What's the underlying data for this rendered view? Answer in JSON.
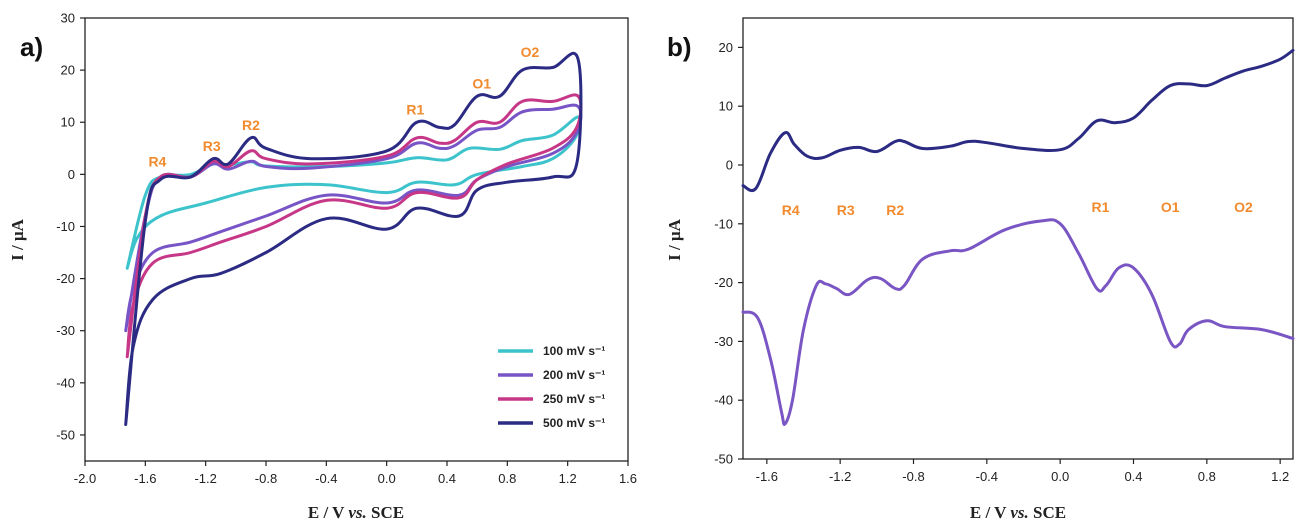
{
  "chart_data": [
    {
      "panel": "a)",
      "type": "line",
      "xlabel": "E / V vs. SCE",
      "ylabel": "I / μA",
      "xlim": [
        -2.0,
        1.6
      ],
      "ylim": [
        -55,
        30
      ],
      "xticks": [
        "-2.0",
        "-1.6",
        "-1.2",
        "-0.8",
        "-0.4",
        "0.0",
        "0.4",
        "0.8",
        "1.2",
        "1.6"
      ],
      "yticks": [
        "30",
        "20",
        "10",
        "0",
        "-10",
        "-20",
        "-30",
        "-40",
        "-50"
      ],
      "legend_position": "bottom-right",
      "peak_labels": [
        {
          "text": "R4",
          "x": -1.52,
          "y": 1.5
        },
        {
          "text": "R3",
          "x": -1.16,
          "y": 4.5
        },
        {
          "text": "R2",
          "x": -0.9,
          "y": 8.5
        },
        {
          "text": "R1",
          "x": 0.19,
          "y": 11.5
        },
        {
          "text": "O1",
          "x": 0.63,
          "y": 16.5
        },
        {
          "text": "O2",
          "x": 0.95,
          "y": 22.5
        }
      ],
      "series": [
        {
          "name": "100 mV s⁻¹",
          "color": "#3cc3cb",
          "forward": [
            [
              -1.72,
              -18
            ],
            [
              -1.6,
              -4
            ],
            [
              -1.5,
              -0.5
            ],
            [
              -1.3,
              0
            ],
            [
              -1.15,
              2
            ],
            [
              -1.05,
              1.8
            ],
            [
              -0.9,
              2.4
            ],
            [
              -0.8,
              1.6
            ],
            [
              -0.4,
              1.5
            ],
            [
              0,
              2.2
            ],
            [
              0.2,
              3.2
            ],
            [
              0.4,
              2.8
            ],
            [
              0.55,
              5
            ],
            [
              0.75,
              4.8
            ],
            [
              0.9,
              6.5
            ],
            [
              1.1,
              7.5
            ],
            [
              1.27,
              11
            ]
          ],
          "reverse": [
            [
              1.27,
              11
            ],
            [
              1.25,
              7
            ],
            [
              1.1,
              3
            ],
            [
              0.9,
              1.5
            ],
            [
              0.6,
              0
            ],
            [
              0.45,
              -2
            ],
            [
              0.2,
              -1.5
            ],
            [
              0,
              -3.5
            ],
            [
              -0.4,
              -2
            ],
            [
              -0.8,
              -2.5
            ],
            [
              -1.2,
              -5.5
            ],
            [
              -1.5,
              -8
            ],
            [
              -1.65,
              -12
            ],
            [
              -1.72,
              -18
            ]
          ]
        },
        {
          "name": "200 mV s⁻¹",
          "color": "#7855c6",
          "forward": [
            [
              -1.73,
              -30
            ],
            [
              -1.6,
              -8
            ],
            [
              -1.5,
              -0.5
            ],
            [
              -1.3,
              -0.5
            ],
            [
              -1.15,
              2
            ],
            [
              -1.05,
              1
            ],
            [
              -0.9,
              2.5
            ],
            [
              -0.8,
              1.5
            ],
            [
              -0.5,
              1.2
            ],
            [
              0,
              3
            ],
            [
              0.2,
              6
            ],
            [
              0.35,
              5
            ],
            [
              0.45,
              5.5
            ],
            [
              0.6,
              8.5
            ],
            [
              0.75,
              9
            ],
            [
              0.9,
              12
            ],
            [
              1.1,
              12.5
            ],
            [
              1.27,
              13
            ]
          ],
          "reverse": [
            [
              1.27,
              13
            ],
            [
              1.26,
              8
            ],
            [
              1.1,
              4
            ],
            [
              0.8,
              1.5
            ],
            [
              0.6,
              -1
            ],
            [
              0.48,
              -4
            ],
            [
              0.2,
              -3
            ],
            [
              0,
              -5.5
            ],
            [
              -0.4,
              -4
            ],
            [
              -0.8,
              -8
            ],
            [
              -1.1,
              -11
            ],
            [
              -1.3,
              -13
            ],
            [
              -1.55,
              -15
            ],
            [
              -1.68,
              -22
            ],
            [
              -1.73,
              -30
            ]
          ]
        },
        {
          "name": "250 mV s⁻¹",
          "color": "#c73787",
          "forward": [
            [
              -1.72,
              -35
            ],
            [
              -1.6,
              -8
            ],
            [
              -1.5,
              -0.5
            ],
            [
              -1.3,
              -0.5
            ],
            [
              -1.15,
              2.5
            ],
            [
              -1.05,
              1.5
            ],
            [
              -0.9,
              4.5
            ],
            [
              -0.8,
              3
            ],
            [
              -0.5,
              2
            ],
            [
              0,
              3.5
            ],
            [
              0.2,
              7
            ],
            [
              0.35,
              6
            ],
            [
              0.45,
              6.5
            ],
            [
              0.6,
              10
            ],
            [
              0.75,
              10
            ],
            [
              0.9,
              14
            ],
            [
              1.1,
              14
            ],
            [
              1.27,
              15
            ]
          ],
          "reverse": [
            [
              1.27,
              15
            ],
            [
              1.26,
              9
            ],
            [
              1.1,
              5
            ],
            [
              0.8,
              2
            ],
            [
              0.6,
              -1
            ],
            [
              0.48,
              -4.5
            ],
            [
              0.2,
              -3.5
            ],
            [
              0,
              -6.5
            ],
            [
              -0.4,
              -5
            ],
            [
              -0.8,
              -10
            ],
            [
              -1.1,
              -13
            ],
            [
              -1.3,
              -15
            ],
            [
              -1.55,
              -17
            ],
            [
              -1.68,
              -25
            ],
            [
              -1.72,
              -35
            ]
          ]
        },
        {
          "name": "500 mV s⁻¹",
          "color": "#2b2b84",
          "forward": [
            [
              -1.73,
              -48
            ],
            [
              -1.6,
              -9
            ],
            [
              -1.5,
              -1
            ],
            [
              -1.3,
              -0.5
            ],
            [
              -1.15,
              3
            ],
            [
              -1.05,
              2
            ],
            [
              -0.9,
              7
            ],
            [
              -0.8,
              5
            ],
            [
              -0.5,
              3
            ],
            [
              0,
              4.5
            ],
            [
              0.2,
              10
            ],
            [
              0.35,
              9
            ],
            [
              0.45,
              9.5
            ],
            [
              0.6,
              15
            ],
            [
              0.75,
              15
            ],
            [
              0.9,
              20
            ],
            [
              1.1,
              20.5
            ],
            [
              1.27,
              22
            ]
          ],
          "reverse": [
            [
              1.27,
              8
            ],
            [
              1.26,
              2
            ],
            [
              1.1,
              -0.5
            ],
            [
              0.8,
              -1.5
            ],
            [
              0.6,
              -3
            ],
            [
              0.48,
              -8
            ],
            [
              0.2,
              -6.5
            ],
            [
              0,
              -10.5
            ],
            [
              -0.4,
              -8.5
            ],
            [
              -0.8,
              -15
            ],
            [
              -1.1,
              -19
            ],
            [
              -1.3,
              -20
            ],
            [
              -1.55,
              -24
            ],
            [
              -1.68,
              -33
            ],
            [
              -1.73,
              -48
            ]
          ]
        }
      ]
    },
    {
      "panel": "b)",
      "type": "line",
      "xlabel": "E / V vs. SCE",
      "ylabel": "I / μA",
      "xlim": [
        -1.73,
        1.27
      ],
      "ylim": [
        -50,
        25
      ],
      "xticks": [
        "-1.6",
        "-1.2",
        "-0.8",
        "-0.4",
        "0.0",
        "0.4",
        "0.8",
        "1.2"
      ],
      "yticks": [
        "20",
        "10",
        "0",
        "-10",
        "-20",
        "-30",
        "-40",
        "-50"
      ],
      "peak_labels": [
        {
          "text": "R4",
          "x": -1.47,
          "y": -8.5
        },
        {
          "text": "R3",
          "x": -1.17,
          "y": -8.5
        },
        {
          "text": "R2",
          "x": -0.9,
          "y": -8.5
        },
        {
          "text": "R1",
          "x": 0.22,
          "y": -8
        },
        {
          "text": "O1",
          "x": 0.6,
          "y": -8
        },
        {
          "text": "O2",
          "x": 1.0,
          "y": -8
        }
      ],
      "series": [
        {
          "name": "",
          "color": "#2b2b84",
          "points": [
            [
              -1.73,
              -3.5
            ],
            [
              -1.66,
              -4
            ],
            [
              -1.58,
              2
            ],
            [
              -1.5,
              5.5
            ],
            [
              -1.45,
              3.5
            ],
            [
              -1.38,
              1.5
            ],
            [
              -1.3,
              1.2
            ],
            [
              -1.2,
              2.5
            ],
            [
              -1.1,
              3
            ],
            [
              -1.0,
              2.3
            ],
            [
              -0.9,
              4
            ],
            [
              -0.85,
              4
            ],
            [
              -0.75,
              2.8
            ],
            [
              -0.6,
              3.2
            ],
            [
              -0.5,
              4
            ],
            [
              -0.4,
              3.8
            ],
            [
              -0.2,
              2.8
            ],
            [
              0,
              2.6
            ],
            [
              0.1,
              4.5
            ],
            [
              0.2,
              7.5
            ],
            [
              0.3,
              7.2
            ],
            [
              0.4,
              8
            ],
            [
              0.5,
              11
            ],
            [
              0.6,
              13.5
            ],
            [
              0.7,
              13.8
            ],
            [
              0.8,
              13.5
            ],
            [
              0.9,
              14.8
            ],
            [
              1.0,
              16
            ],
            [
              1.1,
              16.8
            ],
            [
              1.2,
              18
            ],
            [
              1.27,
              19.5
            ]
          ]
        },
        {
          "name": "",
          "color": "#7a55c4",
          "points": [
            [
              -1.73,
              -25
            ],
            [
              -1.65,
              -26
            ],
            [
              -1.58,
              -33
            ],
            [
              -1.52,
              -42
            ],
            [
              -1.5,
              -44
            ],
            [
              -1.46,
              -40
            ],
            [
              -1.4,
              -28
            ],
            [
              -1.33,
              -20.5
            ],
            [
              -1.28,
              -20.2
            ],
            [
              -1.22,
              -21
            ],
            [
              -1.15,
              -22
            ],
            [
              -1.05,
              -19.5
            ],
            [
              -0.98,
              -19.3
            ],
            [
              -0.9,
              -21
            ],
            [
              -0.85,
              -20.5
            ],
            [
              -0.75,
              -16
            ],
            [
              -0.6,
              -14.6
            ],
            [
              -0.5,
              -14.3
            ],
            [
              -0.3,
              -11
            ],
            [
              -0.1,
              -9.5
            ],
            [
              0,
              -10
            ],
            [
              0.1,
              -15
            ],
            [
              0.2,
              -21
            ],
            [
              0.25,
              -20.5
            ],
            [
              0.32,
              -17.5
            ],
            [
              0.4,
              -17.5
            ],
            [
              0.5,
              -22
            ],
            [
              0.6,
              -30
            ],
            [
              0.65,
              -30.5
            ],
            [
              0.7,
              -28
            ],
            [
              0.8,
              -26.5
            ],
            [
              0.9,
              -27.5
            ],
            [
              1.1,
              -28
            ],
            [
              1.27,
              -29.5
            ]
          ]
        }
      ]
    }
  ]
}
